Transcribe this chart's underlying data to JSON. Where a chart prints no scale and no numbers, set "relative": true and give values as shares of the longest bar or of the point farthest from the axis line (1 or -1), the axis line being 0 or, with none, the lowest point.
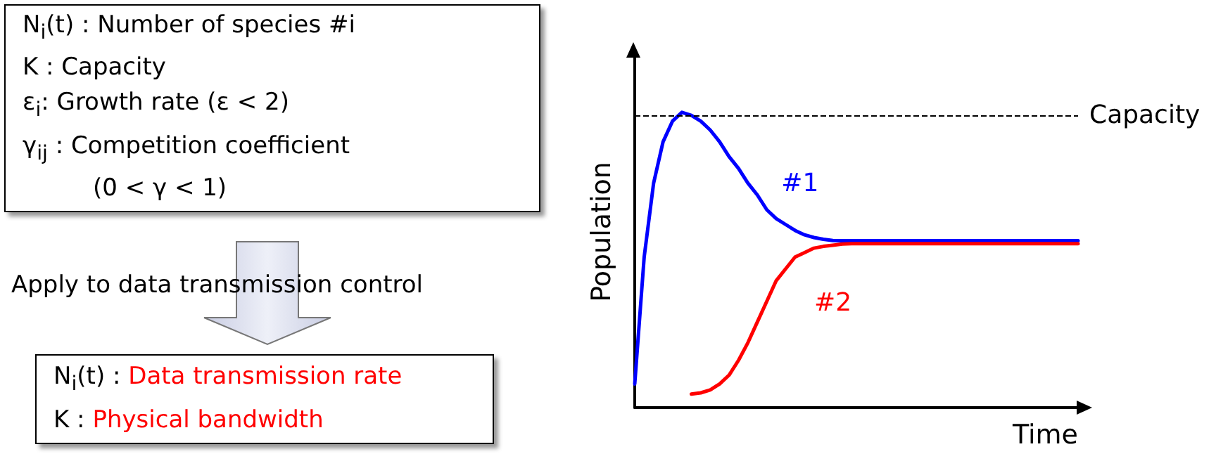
{
  "chart_data": {
    "type": "line",
    "relative": true,
    "xlabel": "Time",
    "ylabel": "Population",
    "categories": [
      null,
      null,
      null,
      null,
      null,
      null,
      null,
      null,
      null,
      null,
      null,
      null,
      null,
      null,
      null,
      null,
      null,
      null,
      null,
      null,
      null,
      null,
      null,
      null,
      null,
      null,
      null,
      null,
      null,
      null,
      null,
      null,
      null,
      null,
      null,
      null,
      null,
      null,
      null,
      null,
      null,
      null,
      null,
      null,
      null,
      null,
      null,
      null
    ],
    "series": [
      {
        "name": "#1",
        "color": "#0000ff",
        "values": [
          0.08,
          0.51,
          0.76,
          0.9,
          0.97,
          1.0,
          0.99,
          0.97,
          0.94,
          0.9,
          0.85,
          0.81,
          0.76,
          0.72,
          0.67,
          0.64,
          0.62,
          0.6,
          0.585,
          0.576,
          0.57,
          0.566,
          0.565,
          0.565,
          0.565,
          0.565,
          0.565,
          0.565,
          0.565,
          0.565,
          0.565,
          0.565,
          0.565,
          0.565,
          0.565,
          0.565,
          0.565,
          0.565,
          0.565,
          0.565,
          0.565,
          0.565,
          0.565,
          0.565,
          0.565,
          0.565,
          0.565,
          0.565
        ]
      },
      {
        "name": "#2",
        "color": "#ff0000",
        "values": [
          null,
          null,
          null,
          null,
          null,
          null,
          0.046,
          0.05,
          0.06,
          0.08,
          0.11,
          0.16,
          0.22,
          0.29,
          0.36,
          0.43,
          0.47,
          0.51,
          0.525,
          0.54,
          0.546,
          0.55,
          0.554,
          0.555,
          0.555,
          0.555,
          0.555,
          0.555,
          0.555,
          0.555,
          0.555,
          0.555,
          0.555,
          0.555,
          0.555,
          0.555,
          0.555,
          0.555,
          0.555,
          0.555,
          0.555,
          0.555,
          0.555,
          0.555,
          0.555,
          0.555,
          0.555,
          0.555
        ]
      }
    ],
    "ref_lines": [
      {
        "axis": "y",
        "value": 0.99,
        "label": "Capacity",
        "color": "#000000",
        "line_style": "dashed"
      }
    ],
    "annotations": [
      "N$_{i}$(t) : Number of species #i",
      "K : Capacity",
      "ε$_{i}$: Growth rate (ε < 2)",
      "γ$_{ij}$ : Competition coefficient",
      "(0 < γ < 1)",
      "Apply to data transmission control",
      "N$_{i}$(t) : Data transmission rate",
      "K : Physical bandwidth"
    ],
    "grid": false,
    "legend": false,
    "marker": "none",
    "line_style": "solid"
  }
}
